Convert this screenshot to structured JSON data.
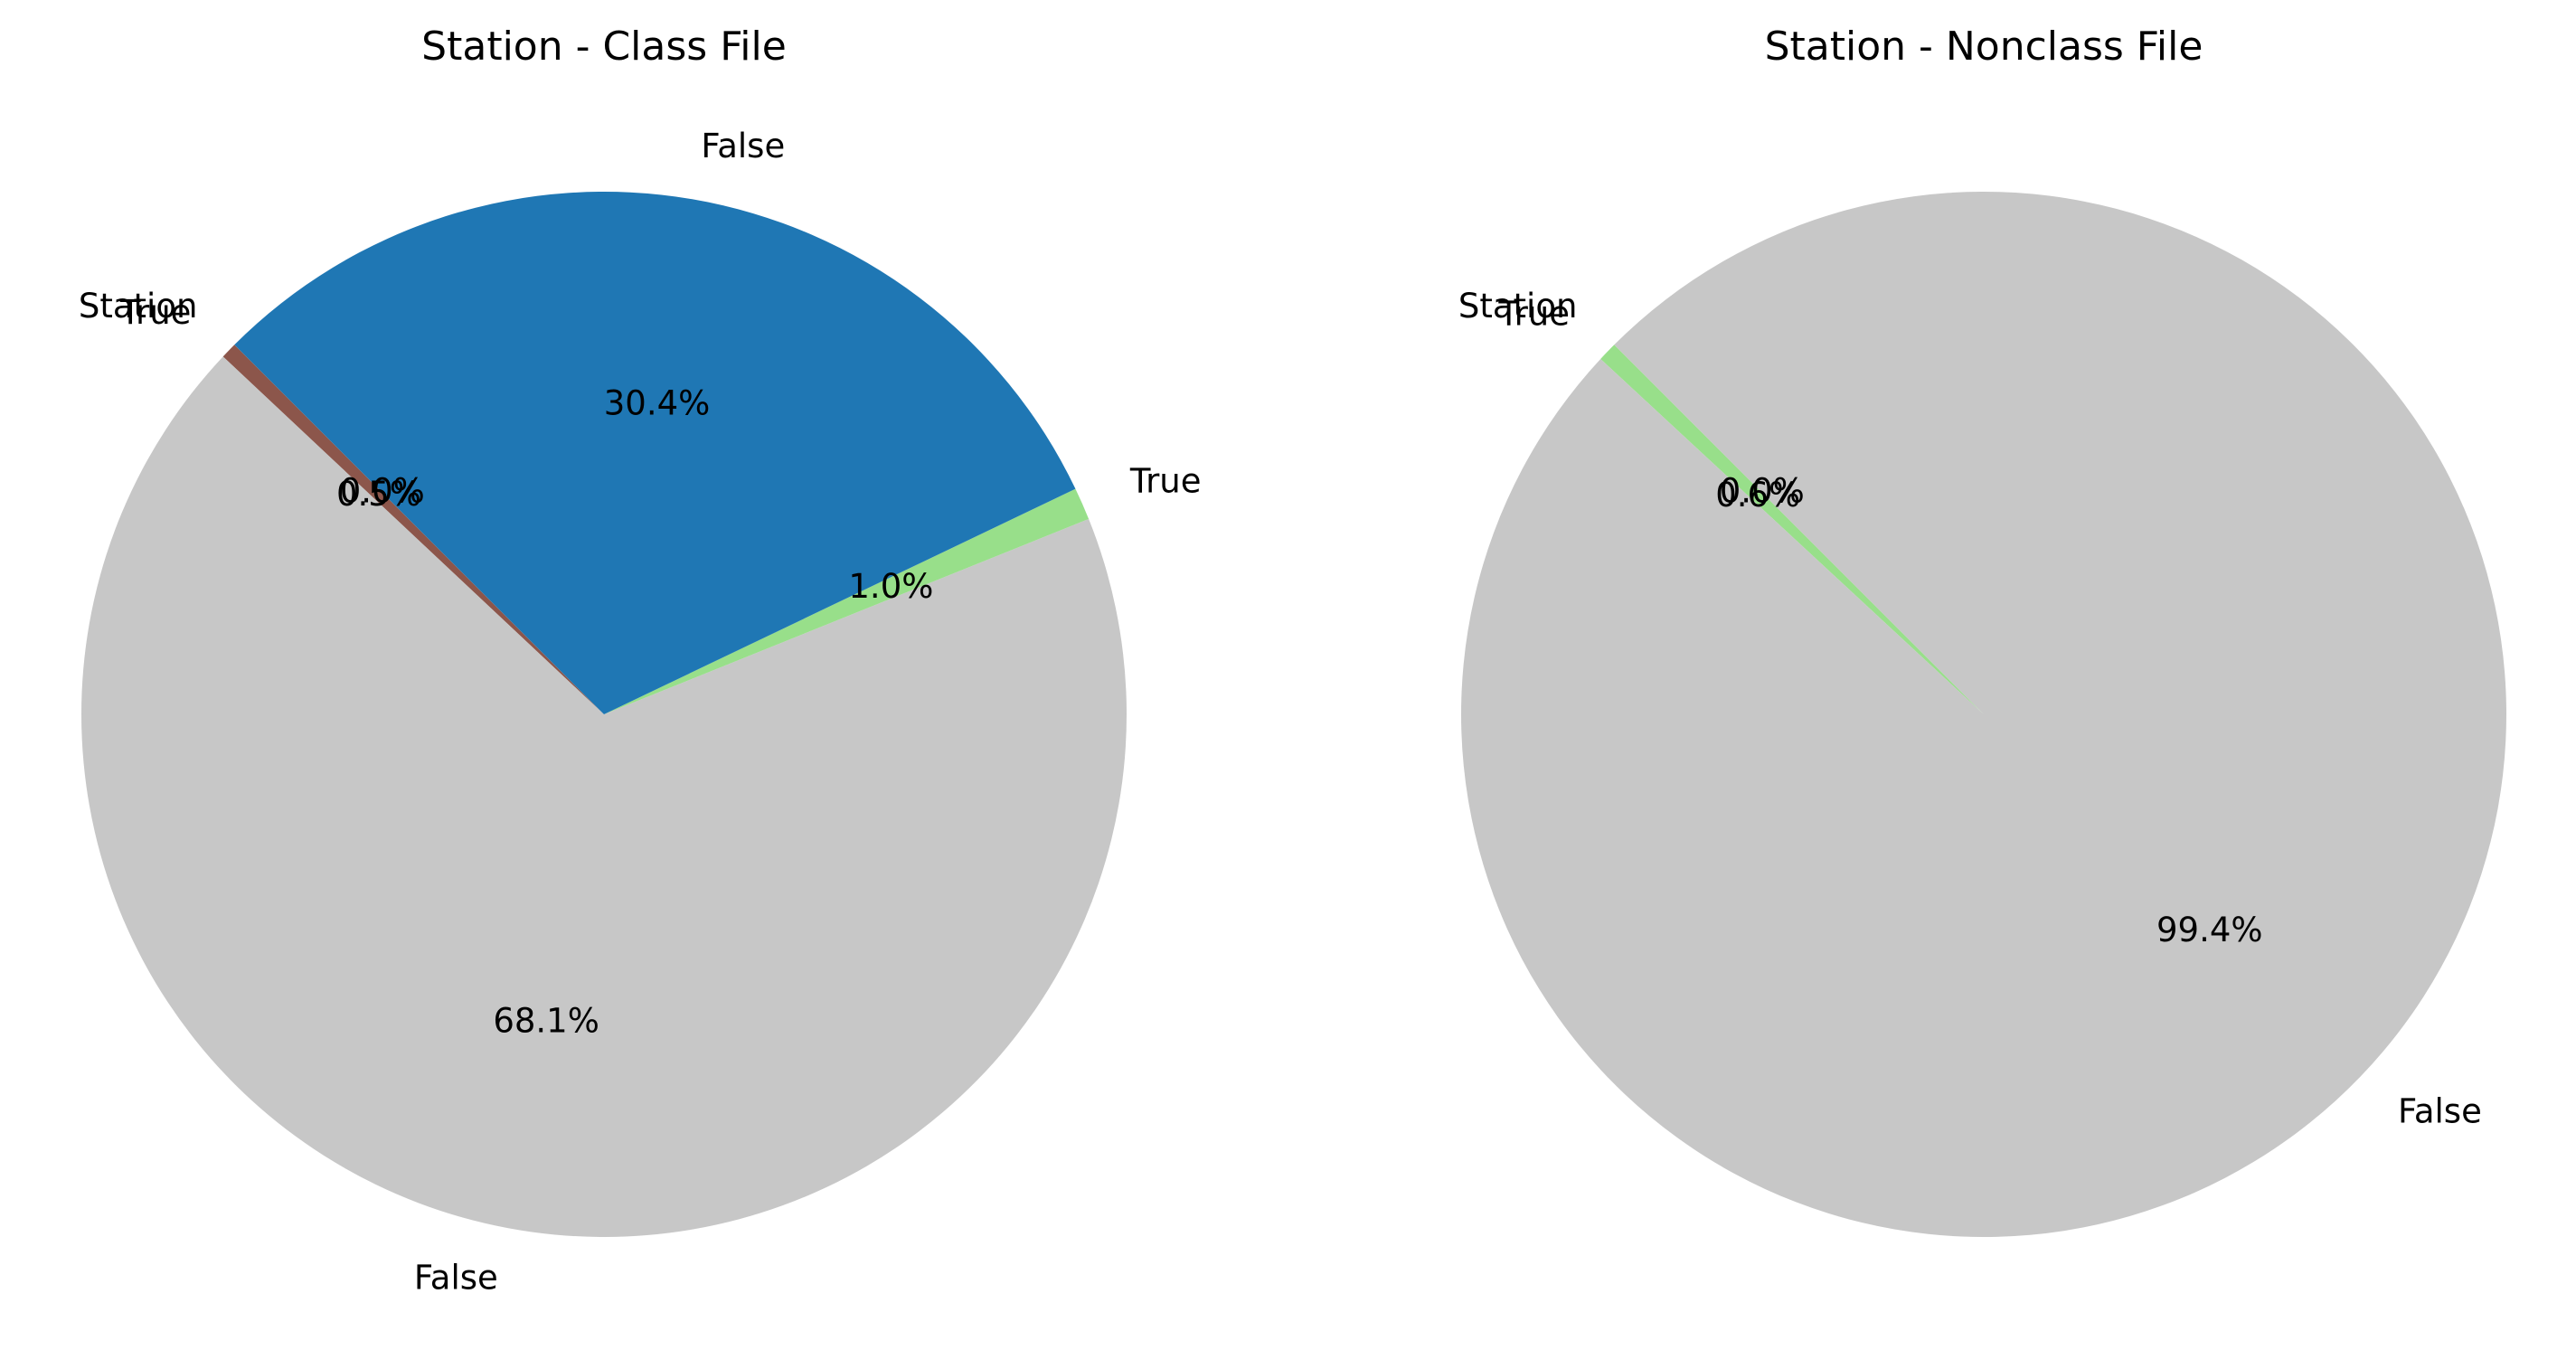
{
  "chart_data": [
    {
      "type": "pie",
      "title": "Station - Class File",
      "start_angle_deg": 135,
      "direction": "counterclockwise",
      "slices": [
        {
          "label": "Station",
          "value": 0.0,
          "pct_label": "0.0%",
          "color": "#17becf"
        },
        {
          "label": "True",
          "value": 0.5,
          "pct_label": "0.5%",
          "color": "#8c564b"
        },
        {
          "label": "False",
          "value": 68.1,
          "pct_label": "68.1%",
          "color": "#c7c7c7"
        },
        {
          "label": "True",
          "value": 1.0,
          "pct_label": "1.0%",
          "color": "#98df8a"
        },
        {
          "label": "False",
          "value": 30.4,
          "pct_label": "30.4%",
          "color": "#1f77b4"
        }
      ]
    },
    {
      "type": "pie",
      "title": "Station - Nonclass File",
      "start_angle_deg": 135,
      "direction": "counterclockwise",
      "slices": [
        {
          "label": "Station",
          "value": 0.0,
          "pct_label": "0.0%",
          "color": "#17becf"
        },
        {
          "label": "True",
          "value": 0.6,
          "pct_label": "0.6%",
          "color": "#98df8a"
        },
        {
          "label": "False",
          "value": 99.4,
          "pct_label": "99.4%",
          "color": "#c7c7c7"
        }
      ]
    }
  ]
}
